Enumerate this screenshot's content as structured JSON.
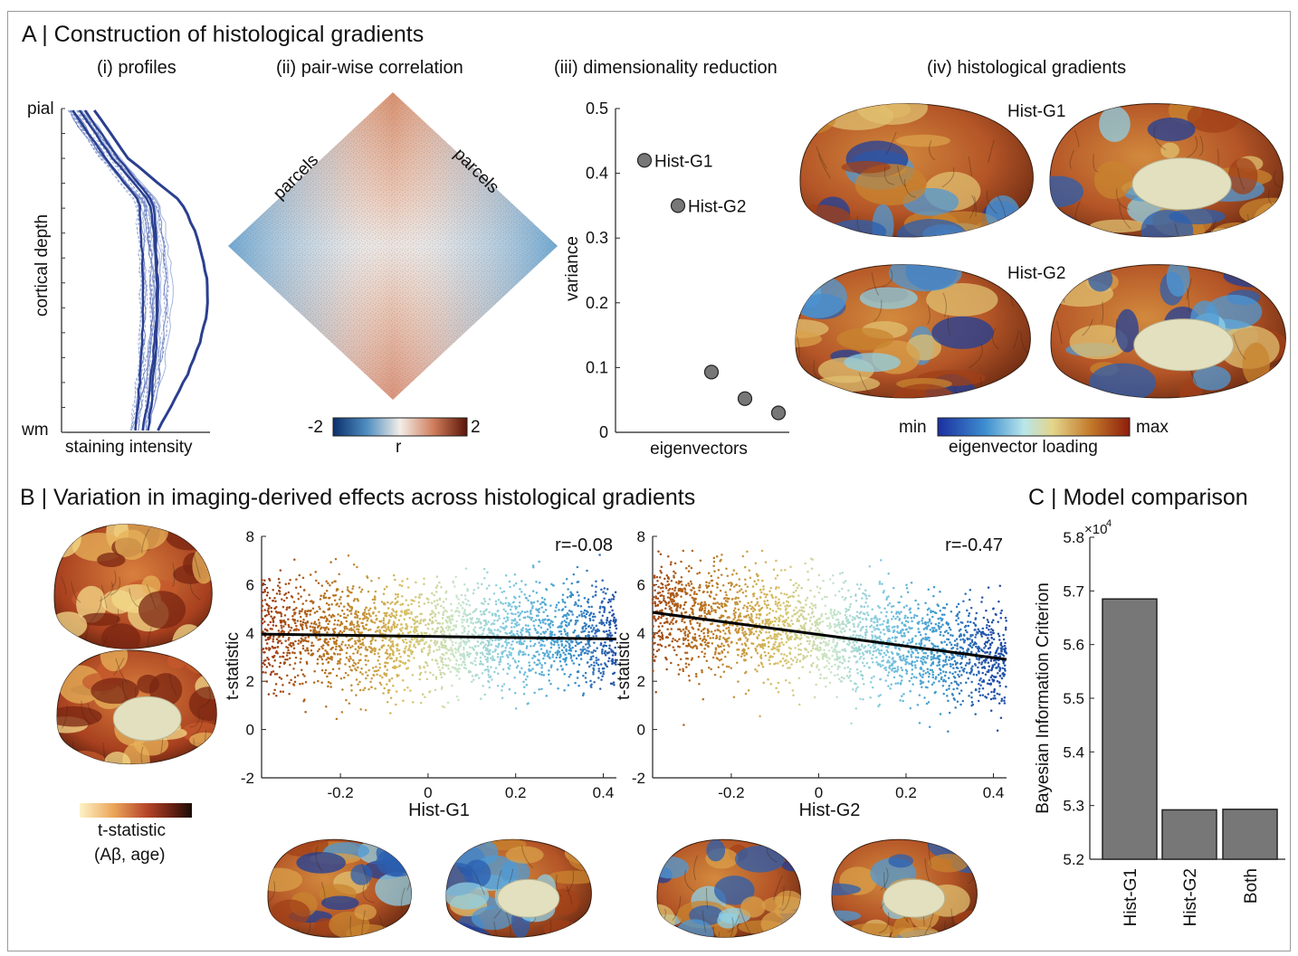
{
  "panel_a": {
    "title": "A | Construction of histological gradients",
    "sub_profiles": "(i) profiles",
    "sub_correlation": "(ii)  pair-wise correlation",
    "sub_dimred": "(iii)  dimensionality reduction",
    "sub_gradients": "(iv) histological gradients",
    "profiles": {
      "top_label": "pial",
      "bottom_label": "wm",
      "ylabel": "cortical depth",
      "xlabel": "staining intensity"
    },
    "correlation": {
      "left_label": "parcels",
      "right_label": "parcels",
      "cbar_min": "-2",
      "cbar_max": "2",
      "cbar_label": "r"
    },
    "gradient_labels": {
      "g1": "Hist-G1",
      "g2": "Hist-G2"
    },
    "gradient_cbar": {
      "min": "min",
      "max": "max",
      "label": "eigenvector loading"
    },
    "colors": {
      "profile_line": "#2a3f8f",
      "profile_light": "#8ea3d6",
      "corr_pos": "#c8684a",
      "corr_neg": "#5b95c4"
    }
  },
  "chart_data": [
    {
      "type": "scatter",
      "title": "",
      "xlabel": "eigenvectors",
      "ylabel": "variance",
      "ylim": [
        0,
        0.5
      ],
      "yticks": [
        "0",
        "0.1",
        "0.2",
        "0.3",
        "0.4",
        "0.5"
      ],
      "points": [
        {
          "x": 1,
          "y": 0.42,
          "label": "Hist-G1"
        },
        {
          "x": 2,
          "y": 0.35,
          "label": "Hist-G2"
        },
        {
          "x": 3,
          "y": 0.093,
          "label": ""
        },
        {
          "x": 4,
          "y": 0.052,
          "label": ""
        },
        {
          "x": 5,
          "y": 0.03,
          "label": ""
        }
      ],
      "point_color": "#777777"
    },
    {
      "type": "scatter",
      "xlabel": "Hist-G1",
      "ylabel": "t-statistic",
      "xlim": [
        -0.38,
        0.43
      ],
      "ylim": [
        -2,
        8
      ],
      "xticks": [
        "-0.2",
        "0",
        "0.2",
        "0.4"
      ],
      "yticks": [
        "-2",
        "0",
        "2",
        "4",
        "6",
        "8"
      ],
      "annotation": "r=-0.08",
      "fit_line": {
        "x": [
          -0.38,
          0.43
        ],
        "y": [
          3.95,
          3.75
        ]
      },
      "point_cloud": {
        "mean_at_min": 3.95,
        "mean_at_max": 3.75,
        "spread": 1.1
      }
    },
    {
      "type": "scatter",
      "xlabel": "Hist-G2",
      "ylabel": "t-statistic",
      "xlim": [
        -0.38,
        0.43
      ],
      "ylim": [
        -2,
        8
      ],
      "xticks": [
        "-0.2",
        "0",
        "0.2",
        "0.4"
      ],
      "yticks": [
        "-2",
        "0",
        "2",
        "4",
        "6",
        "8"
      ],
      "annotation": "r=-0.47",
      "fit_line": {
        "x": [
          -0.38,
          0.43
        ],
        "y": [
          4.85,
          2.9
        ]
      },
      "point_cloud": {
        "mean_at_min": 4.85,
        "mean_at_max": 2.9,
        "spread": 1.1
      }
    },
    {
      "type": "bar",
      "categories": [
        "Hist-G1",
        "Hist-G2",
        "Both"
      ],
      "values": [
        56.85,
        52.92,
        52.93
      ],
      "ylabel": "Bayesian Information Criterion",
      "ylim": [
        52,
        58
      ],
      "yticks": [
        "5.2",
        "5.3",
        "5.4",
        "5.5",
        "5.6",
        "5.7",
        "5.8"
      ],
      "exponent": "×10",
      "exponent_power": "4",
      "bar_color": "#777777"
    }
  ],
  "panel_b": {
    "title": "B | Variation in imaging-derived effects across histological gradients",
    "cbar_label_line1": "t-statistic",
    "cbar_label_line2": "(Aβ, age)"
  },
  "panel_c": {
    "title": "C | Model comparison"
  }
}
